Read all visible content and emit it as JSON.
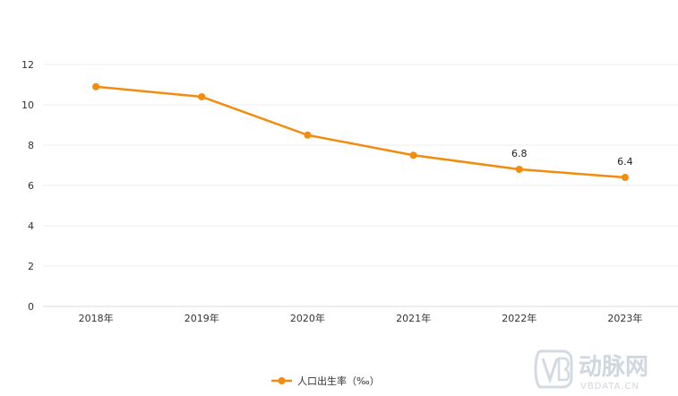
{
  "chart_data": {
    "type": "line",
    "categories": [
      "2018年",
      "2019年",
      "2020年",
      "2021年",
      "2022年",
      "2023年"
    ],
    "series": [
      {
        "name": "人口出生率（‰）",
        "values": [
          10.9,
          10.4,
          8.5,
          7.5,
          6.8,
          6.4
        ],
        "color": "#f28c0f"
      }
    ],
    "data_labels": [
      {
        "index": 4,
        "text": "6.8"
      },
      {
        "index": 5,
        "text": "6.4"
      }
    ],
    "y_ticks": [
      "0",
      "2",
      "4",
      "6",
      "8",
      "10",
      "12"
    ],
    "ylim": [
      0,
      12
    ],
    "grid": true,
    "legend_position": "bottom"
  },
  "watermark": {
    "logo_text": "动脉网",
    "url_text": "VBDATA.CN"
  }
}
